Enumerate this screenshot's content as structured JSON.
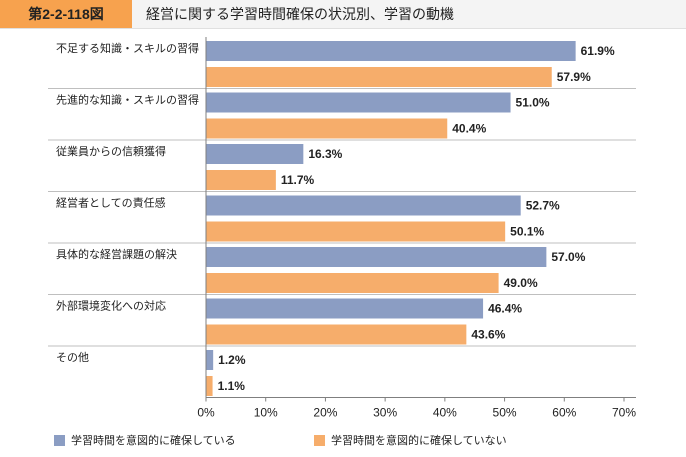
{
  "header": {
    "figure_number": "第2-2-118図",
    "title": "経営に関する学習時間確保の状況別、学習の動機"
  },
  "colors": {
    "series_a": "#8b9dc3",
    "series_b": "#f6ad6b",
    "axis": "#7f7f7f",
    "grid_band": "#bfbfbf"
  },
  "legend": {
    "position": "bottom",
    "items": [
      "学習時間を意図的に確保している",
      "学習時間を意図的に確保していない"
    ]
  },
  "chart_data": {
    "type": "bar",
    "orientation": "horizontal",
    "title": "経営に関する学習時間確保の状況別、学習の動機",
    "categories": [
      "不足する知識・スキルの習得",
      "先進的な知識・スキルの習得",
      "従業員からの信頼獲得",
      "経営者としての責任感",
      "具体的な経営課題の解決",
      "外部環境変化への対応",
      "その他"
    ],
    "series": [
      {
        "name": "学習時間を意図的に確保している",
        "values": [
          61.9,
          51.0,
          16.3,
          52.7,
          57.0,
          46.4,
          1.2
        ],
        "labels": [
          "61.9%",
          "51.0%",
          "16.3%",
          "52.7%",
          "57.0%",
          "46.4%",
          "1.2%"
        ]
      },
      {
        "name": "学習時間を意図的に確保していない",
        "values": [
          57.9,
          40.4,
          11.7,
          50.1,
          49.0,
          43.6,
          1.1
        ],
        "labels": [
          "57.9%",
          "40.4%",
          "11.7%",
          "50.1%",
          "49.0%",
          "43.6%",
          "1.1%"
        ]
      }
    ],
    "xlim": [
      0,
      70
    ],
    "ticks": [
      0,
      10,
      20,
      30,
      40,
      50,
      60,
      70
    ],
    "tick_labels": [
      "0%",
      "10%",
      "20%",
      "30%",
      "40%",
      "50%",
      "60%",
      "70%"
    ],
    "grid": false
  }
}
